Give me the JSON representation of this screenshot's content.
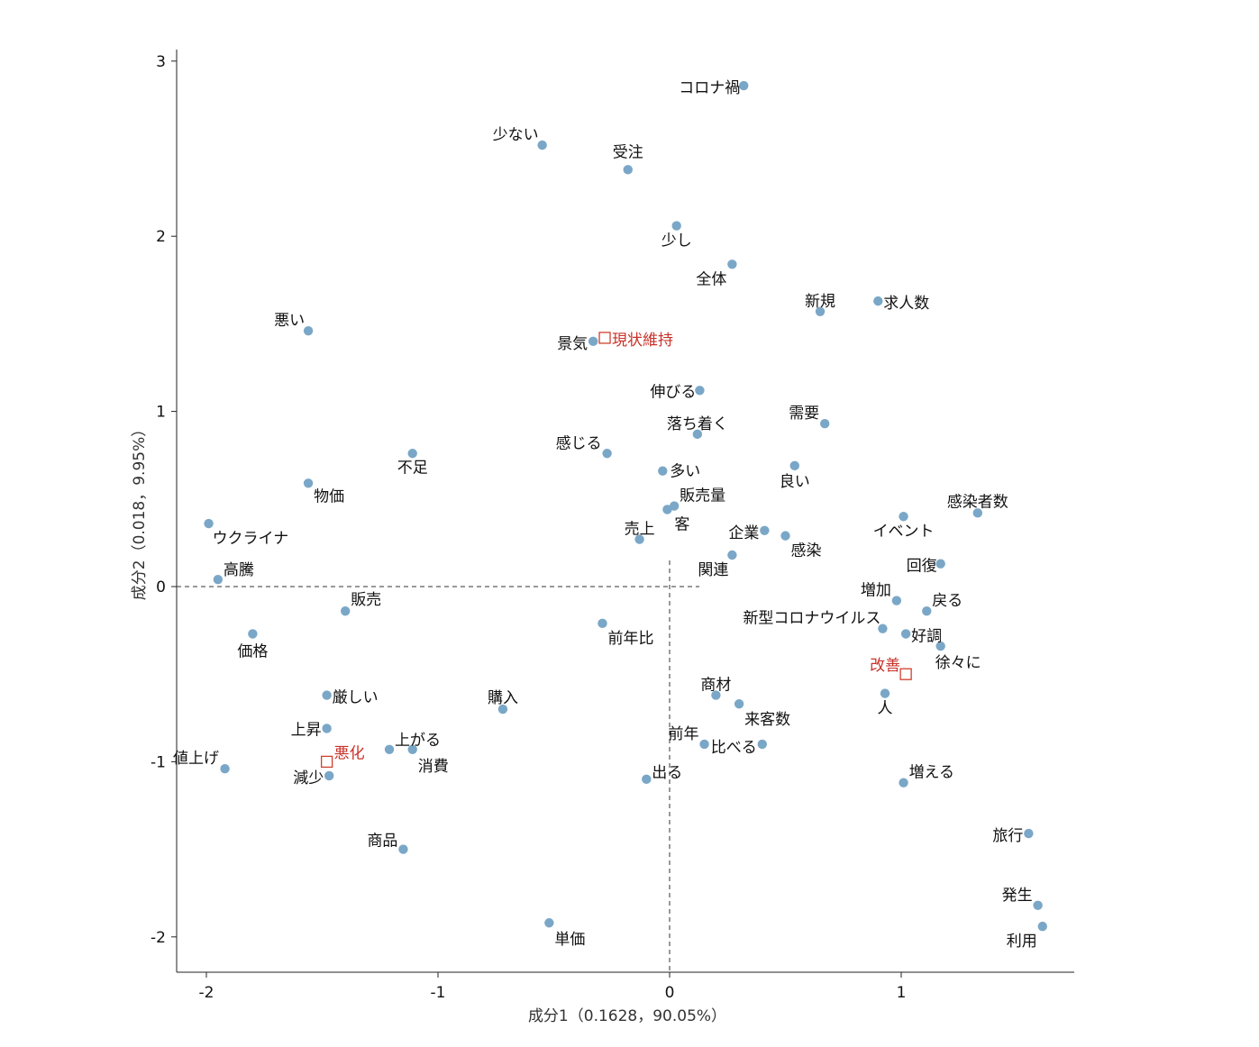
{
  "chart_data": {
    "type": "scatter",
    "title": "",
    "xlabel": "成分1（0.1628，90.05%）",
    "ylabel": "成分2（0.018，9.95%）",
    "xlim": [
      -2.13,
      1.75
    ],
    "ylim": [
      -2.22,
      3.07
    ],
    "xticks": [
      -2,
      -1,
      0,
      1
    ],
    "yticks": [
      -2,
      -1,
      0,
      1,
      2,
      3
    ],
    "grid": false,
    "colors": {
      "words": "#7aa7c7",
      "categories": "#d0402e"
    },
    "words": [
      {
        "label": "コロナ禍",
        "x": 0.32,
        "y": 2.86
      },
      {
        "label": "少ない",
        "x": -0.55,
        "y": 2.52
      },
      {
        "label": "受注",
        "x": -0.18,
        "y": 2.38
      },
      {
        "label": "少し",
        "x": 0.03,
        "y": 2.06
      },
      {
        "label": "全体",
        "x": 0.27,
        "y": 1.84
      },
      {
        "label": "新規",
        "x": 0.65,
        "y": 1.57
      },
      {
        "label": "求人数",
        "x": 0.9,
        "y": 1.63
      },
      {
        "label": "悪い",
        "x": -1.56,
        "y": 1.46
      },
      {
        "label": "景気",
        "x": -0.33,
        "y": 1.4
      },
      {
        "label": "伸びる",
        "x": 0.13,
        "y": 1.12
      },
      {
        "label": "需要",
        "x": 0.67,
        "y": 0.93
      },
      {
        "label": "落ち着く",
        "x": 0.12,
        "y": 0.87
      },
      {
        "label": "感じる",
        "x": -0.27,
        "y": 0.76
      },
      {
        "label": "不足",
        "x": -1.11,
        "y": 0.76
      },
      {
        "label": "良い",
        "x": 0.54,
        "y": 0.69
      },
      {
        "label": "多い",
        "x": -0.03,
        "y": 0.66
      },
      {
        "label": "物価",
        "x": -1.56,
        "y": 0.59
      },
      {
        "label": "販売量",
        "x": 0.02,
        "y": 0.46
      },
      {
        "label": "客",
        "x": -0.01,
        "y": 0.44
      },
      {
        "label": "感染者数",
        "x": 1.33,
        "y": 0.42
      },
      {
        "label": "イベント",
        "x": 1.01,
        "y": 0.4
      },
      {
        "label": "ウクライナ",
        "x": -1.99,
        "y": 0.36
      },
      {
        "label": "企業",
        "x": 0.41,
        "y": 0.32
      },
      {
        "label": "感染",
        "x": 0.5,
        "y": 0.29
      },
      {
        "label": "売上",
        "x": -0.13,
        "y": 0.27
      },
      {
        "label": "関連",
        "x": 0.27,
        "y": 0.18
      },
      {
        "label": "回復",
        "x": 1.17,
        "y": 0.13
      },
      {
        "label": "高騰",
        "x": -1.95,
        "y": 0.04
      },
      {
        "label": "増加",
        "x": 0.98,
        "y": -0.08
      },
      {
        "label": "販売",
        "x": -1.4,
        "y": -0.14
      },
      {
        "label": "戻る",
        "x": 1.11,
        "y": -0.14
      },
      {
        "label": "前年比",
        "x": -0.29,
        "y": -0.21
      },
      {
        "label": "新型コロナウイルス",
        "x": 0.92,
        "y": -0.24
      },
      {
        "label": "価格",
        "x": -1.8,
        "y": -0.27
      },
      {
        "label": "好調",
        "x": 1.02,
        "y": -0.27
      },
      {
        "label": "徐々に",
        "x": 1.17,
        "y": -0.34
      },
      {
        "label": "厳しい",
        "x": -1.48,
        "y": -0.62
      },
      {
        "label": "商材",
        "x": 0.2,
        "y": -0.62
      },
      {
        "label": "人",
        "x": 0.93,
        "y": -0.61
      },
      {
        "label": "来客数",
        "x": 0.3,
        "y": -0.67
      },
      {
        "label": "購入",
        "x": -0.72,
        "y": -0.7
      },
      {
        "label": "上昇",
        "x": -1.48,
        "y": -0.81
      },
      {
        "label": "前年",
        "x": 0.15,
        "y": -0.9
      },
      {
        "label": "比べる",
        "x": 0.4,
        "y": -0.9
      },
      {
        "label": "上がる",
        "x": -1.21,
        "y": -0.93
      },
      {
        "label": "消費",
        "x": -1.11,
        "y": -0.93
      },
      {
        "label": "値上げ",
        "x": -1.92,
        "y": -1.04
      },
      {
        "label": "減少",
        "x": -1.47,
        "y": -1.08
      },
      {
        "label": "出る",
        "x": -0.1,
        "y": -1.1
      },
      {
        "label": "増える",
        "x": 1.01,
        "y": -1.12
      },
      {
        "label": "商品",
        "x": -1.15,
        "y": -1.5
      },
      {
        "label": "旅行",
        "x": 1.55,
        "y": -1.41
      },
      {
        "label": "発生",
        "x": 1.59,
        "y": -1.82
      },
      {
        "label": "単価",
        "x": -0.52,
        "y": -1.92
      },
      {
        "label": "利用",
        "x": 1.61,
        "y": -1.94
      }
    ],
    "categories": [
      {
        "label": "現状維持",
        "x": -0.28,
        "y": 1.42
      },
      {
        "label": "改善",
        "x": 1.02,
        "y": -0.5
      },
      {
        "label": "悪化",
        "x": -1.48,
        "y": -1.0
      }
    ]
  }
}
